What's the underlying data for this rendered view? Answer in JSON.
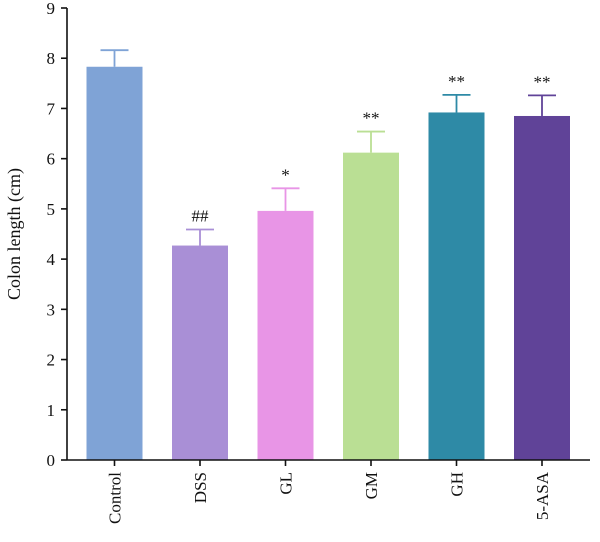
{
  "chart_data": {
    "type": "bar",
    "title": "",
    "xlabel": "",
    "ylabel": "Colon length (cm)",
    "ylim": [
      0,
      9
    ],
    "yticks": [
      0,
      1,
      2,
      3,
      4,
      5,
      6,
      7,
      8,
      9
    ],
    "categories": [
      "Control",
      "DSS",
      "GL",
      "GM",
      "GH",
      "5-ASA"
    ],
    "values": [
      7.83,
      4.27,
      4.96,
      6.12,
      6.92,
      6.85
    ],
    "errors": [
      0.33,
      0.32,
      0.45,
      0.42,
      0.35,
      0.41
    ],
    "significance": [
      "",
      "##",
      "*",
      "**",
      "**",
      "**"
    ],
    "colors": [
      "#7fa3d6",
      "#a98fd6",
      "#e895e6",
      "#badf94",
      "#2e8aa6",
      "#604398"
    ],
    "grid": false,
    "legend": "none"
  }
}
